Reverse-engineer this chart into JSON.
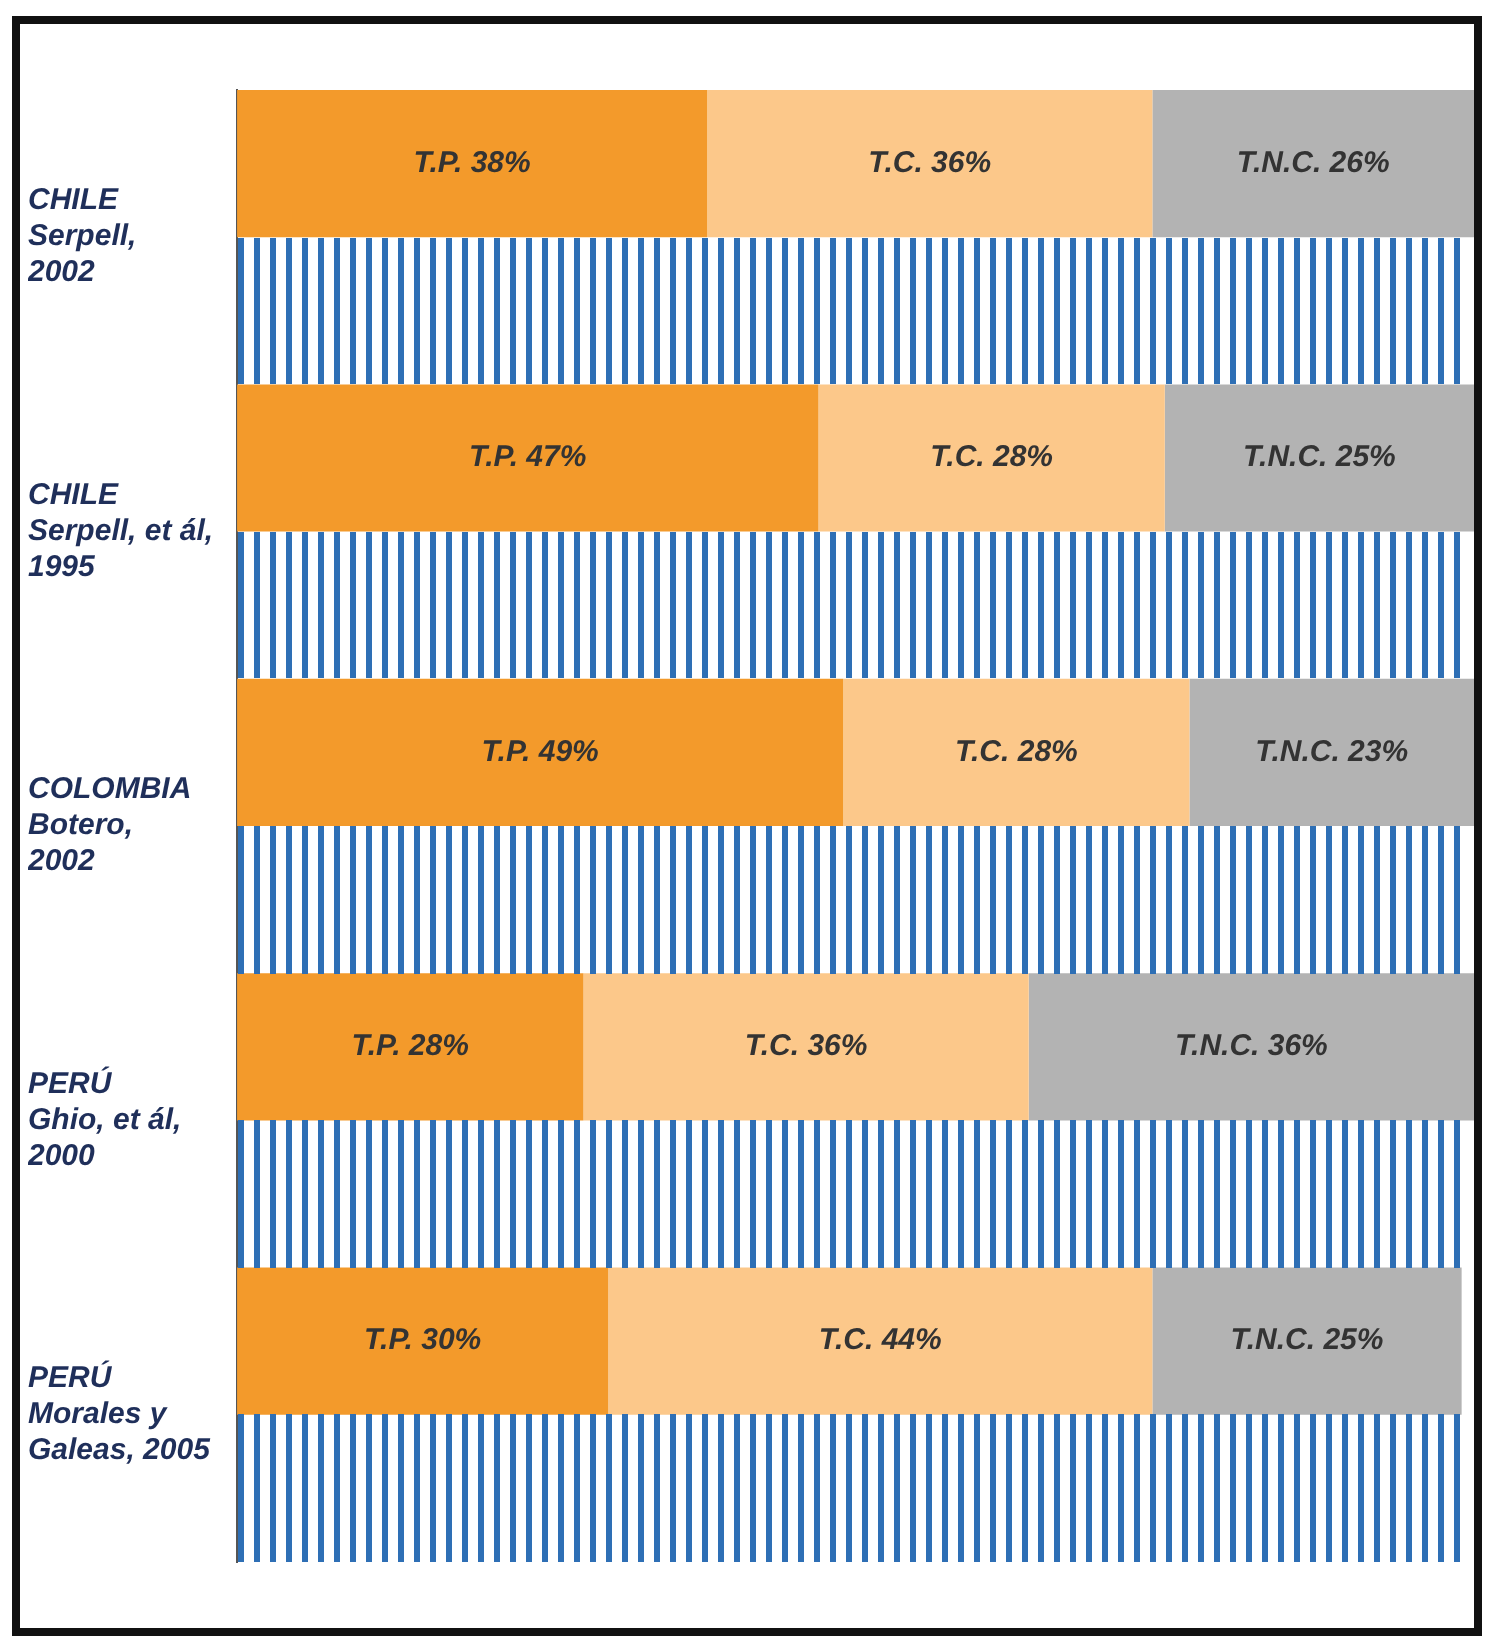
{
  "chart_data": {
    "type": "bar",
    "orientation": "horizontal",
    "stacked": true,
    "categories": [
      "CHILE\nSerpell,\n2002",
      "CHILE\nSerpell, et ál,\n1995",
      "COLOMBIA\nBotero,\n2002",
      "PERÚ\nGhio, et ál,\n2000",
      "PERÚ\nMorales y\nGaleas, 2005"
    ],
    "series": [
      {
        "color": "#f39a2b",
        "values": [
          38,
          47,
          49,
          28,
          30
        ],
        "value_labels": [
          "T.P. 38%",
          "T.P. 47%",
          "T.P. 49%",
          "T.P. 28%",
          "T.P. 30%"
        ]
      },
      {
        "color": "#fcc88a",
        "values": [
          36,
          28,
          28,
          36,
          44
        ],
        "value_labels": [
          "T.C. 36%",
          "T.C. 28%",
          "T.C. 28%",
          "T.C. 36%",
          "T.C. 44%"
        ]
      },
      {
        "color": "#b3b3b3",
        "values": [
          26,
          25,
          23,
          36,
          25
        ],
        "value_labels": [
          "T.N.C. 26%",
          "T.N.C. 25%",
          "T.N.C. 23%",
          "T.N.C. 36%",
          "T.N.C. 25%"
        ]
      }
    ],
    "xlim": [
      0,
      100
    ],
    "legend": false,
    "grid": false
  }
}
